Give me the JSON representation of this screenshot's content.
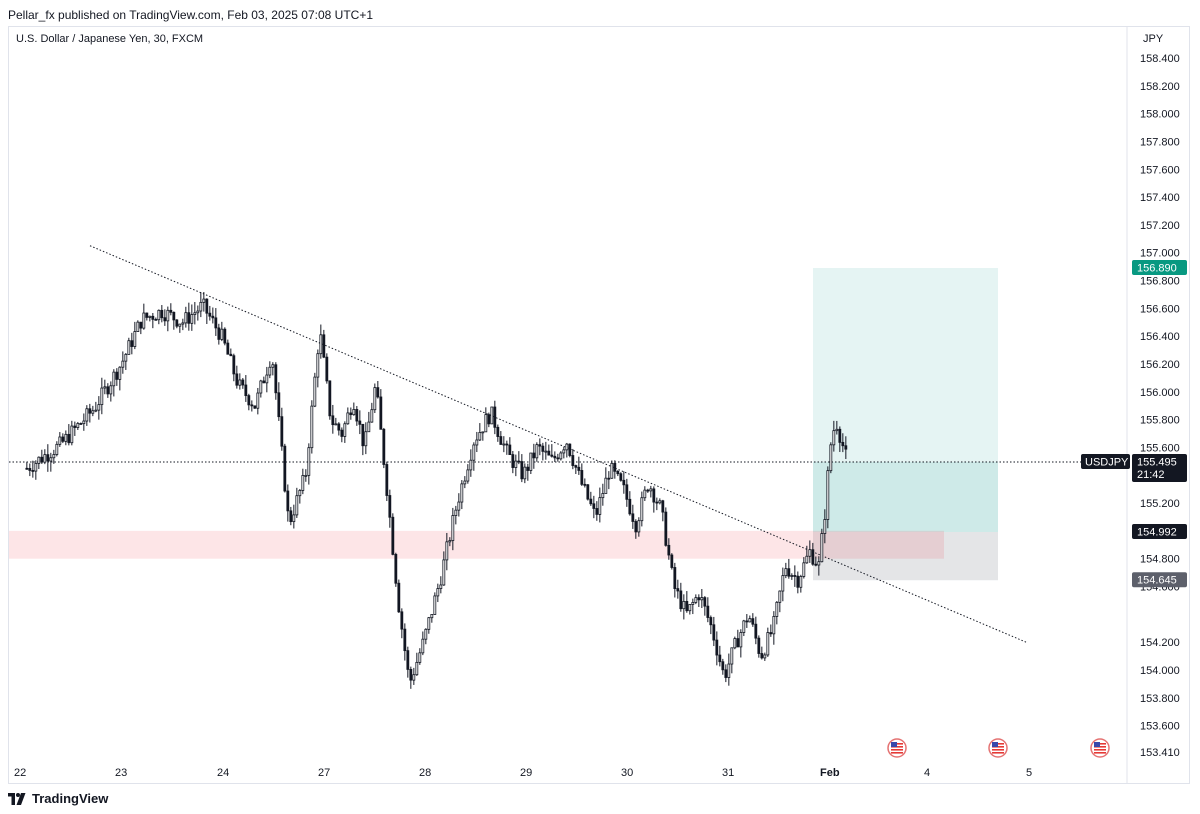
{
  "publisher_line": "Pellar_fx published on TradingView.com, Feb 03, 2025 07:08 UTC+1",
  "symbol_title": "U.S. Dollar / Japanese Yen, 30, FXCM",
  "footer_brand": "TradingView",
  "colors": {
    "candle": "#131722",
    "profit_zone": "#26a69a",
    "loss_zone": "#9598a1",
    "demand_zone": "#f23645",
    "take_profit_label": "#089981",
    "stop_label": "#5d606b",
    "price_label": "#131722"
  },
  "chart_data": {
    "type": "candlestick",
    "currency": "JPY",
    "x_ticks": [
      "22",
      "23",
      "24",
      "27",
      "28",
      "29",
      "30",
      "31",
      "Feb",
      "4",
      "5"
    ],
    "y_ticks": [
      "158.400",
      "158.200",
      "158.000",
      "157.800",
      "157.600",
      "157.400",
      "157.200",
      "157.000",
      "156.800",
      "156.600",
      "156.400",
      "156.200",
      "156.000",
      "155.800",
      "155.600",
      "155.200",
      "154.800",
      "154.600",
      "154.200",
      "154.000",
      "153.800",
      "153.600",
      "153.410"
    ],
    "y_range": [
      153.41,
      158.4
    ],
    "price_path": [
      [
        "22",
        155.45
      ],
      [
        "22",
        155.62
      ],
      [
        "22",
        155.88
      ],
      [
        "23",
        156.2
      ],
      [
        "23",
        156.52
      ],
      [
        "23",
        156.58
      ],
      [
        "23",
        156.5
      ],
      [
        "23",
        156.62
      ],
      [
        "24",
        156.4
      ],
      [
        "24",
        156.05
      ],
      [
        "24",
        155.9
      ],
      [
        "24",
        156.28
      ],
      [
        "24",
        155.05
      ],
      [
        "24",
        155.4
      ],
      [
        "27",
        156.45
      ],
      [
        "27",
        155.8
      ],
      [
        "27",
        155.7
      ],
      [
        "27",
        155.95
      ],
      [
        "27",
        155.6
      ],
      [
        "27",
        156.05
      ],
      [
        "27",
        155.3
      ],
      [
        "27",
        154.5
      ],
      [
        "27",
        153.9
      ],
      [
        "28",
        154.2
      ],
      [
        "28",
        154.65
      ],
      [
        "28",
        155.2
      ],
      [
        "28",
        155.65
      ],
      [
        "28",
        155.85
      ],
      [
        "28",
        155.55
      ],
      [
        "29",
        155.4
      ],
      [
        "29",
        155.6
      ],
      [
        "29",
        155.5
      ],
      [
        "29",
        155.65
      ],
      [
        "29",
        155.35
      ],
      [
        "29",
        155.1
      ],
      [
        "29",
        155.45
      ],
      [
        "30",
        155.3
      ],
      [
        "30",
        155.05
      ],
      [
        "30",
        155.35
      ],
      [
        "30",
        155.15
      ],
      [
        "30",
        154.6
      ],
      [
        "30",
        154.4
      ],
      [
        "30",
        154.55
      ],
      [
        "30",
        154.3
      ],
      [
        "31",
        153.95
      ],
      [
        "31",
        154.2
      ],
      [
        "31",
        154.4
      ],
      [
        "31",
        154.1
      ],
      [
        "31",
        154.3
      ],
      [
        "31",
        154.75
      ],
      [
        "31",
        154.65
      ],
      [
        "31",
        154.85
      ],
      [
        "Feb",
        154.75
      ],
      [
        "Feb",
        155.1
      ],
      [
        "Feb",
        155.6
      ],
      [
        "Feb",
        155.8
      ],
      [
        "Feb",
        155.65
      ],
      [
        "Feb",
        155.5
      ]
    ],
    "current_price": {
      "label": "USDJPY",
      "value": "155.495",
      "countdown": "21:42"
    },
    "position": {
      "take_profit": "156.890",
      "entry": "154.992",
      "stop_loss": "154.645"
    },
    "demand_zone": [
      154.8,
      155.0
    ],
    "trendline": {
      "from": [
        "22",
        157.05
      ],
      "to": [
        "5",
        154.2
      ]
    },
    "event_icons": [
      "us-flag-icon",
      "us-flag-icon",
      "us-flag-icon"
    ]
  }
}
